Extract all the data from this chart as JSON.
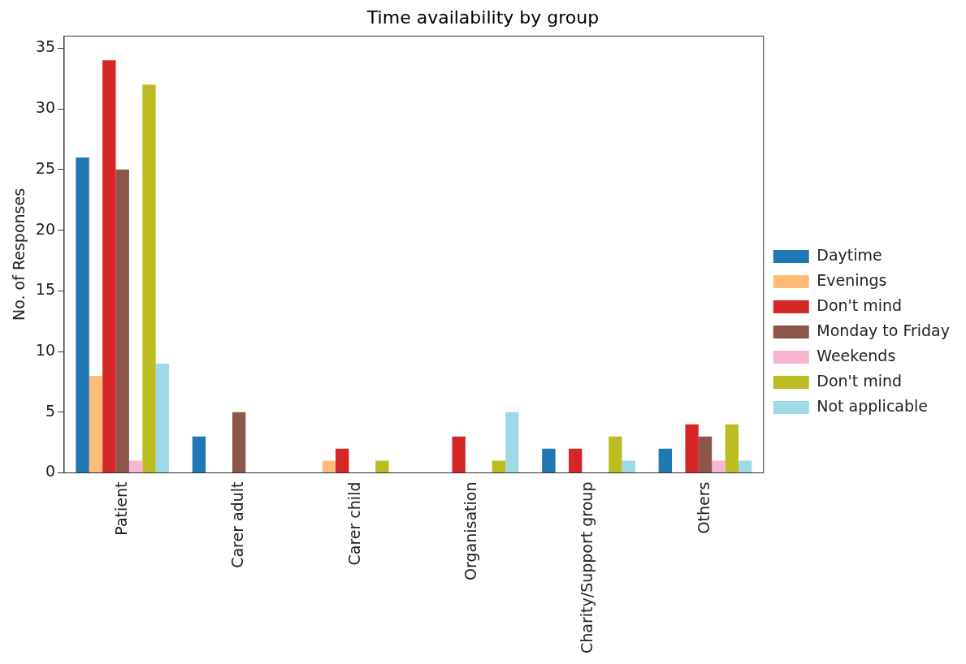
{
  "chart_data": {
    "type": "bar",
    "title": "Time availability by group",
    "ylabel": "No. of Responses",
    "categories": [
      "Patient",
      "Carer adult",
      "Carer child",
      "Organisation",
      "Charity/Support group",
      "Others"
    ],
    "series": [
      {
        "name": "Daytime",
        "color": "#1f77b4",
        "values": [
          26,
          3,
          0,
          0,
          2,
          2
        ]
      },
      {
        "name": "Evenings",
        "color": "#ffbb78",
        "values": [
          8,
          0,
          1,
          0,
          0,
          0
        ]
      },
      {
        "name": "Don't mind",
        "color": "#d62728",
        "values": [
          34,
          0,
          2,
          3,
          2,
          4
        ]
      },
      {
        "name": "Monday to Friday",
        "color": "#8c564b",
        "values": [
          25,
          5,
          0,
          0,
          0,
          3
        ]
      },
      {
        "name": "Weekends",
        "color": "#f7b6d2",
        "values": [
          1,
          0,
          0,
          0,
          0,
          1
        ]
      },
      {
        "name": "Don't mind",
        "color": "#bcbd22",
        "values": [
          32,
          0,
          1,
          1,
          3,
          4
        ]
      },
      {
        "name": "Not applicable",
        "color": "#9edae5",
        "values": [
          9,
          0,
          0,
          5,
          1,
          1
        ]
      }
    ],
    "ylim": [
      0,
      36
    ],
    "yticks": [
      0,
      5,
      10,
      15,
      20,
      25,
      30,
      35
    ],
    "grid": false,
    "legend": "right"
  }
}
